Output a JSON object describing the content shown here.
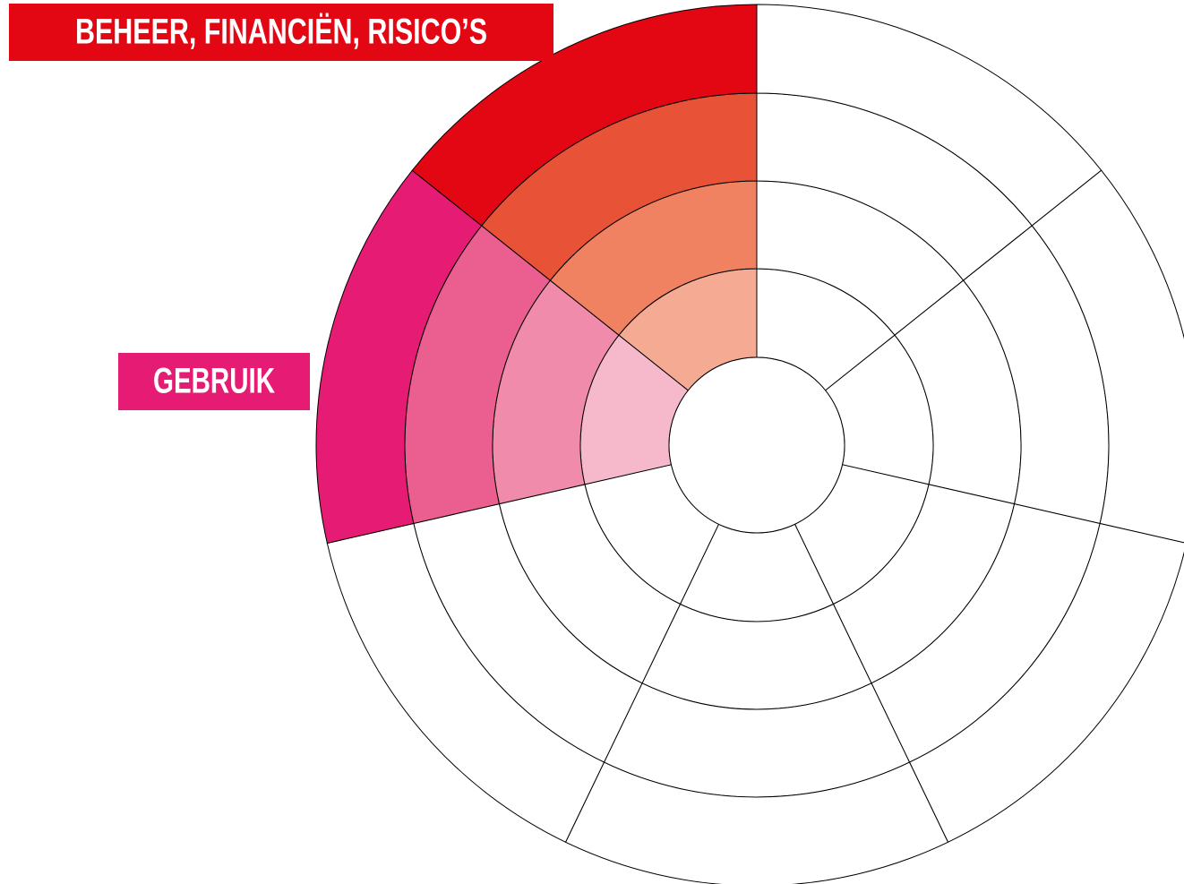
{
  "labels": [
    {
      "text": "BEHEER, FINANCIËN, RISICO’S"
    },
    {
      "text": "GEBRUIK"
    }
  ]
}
